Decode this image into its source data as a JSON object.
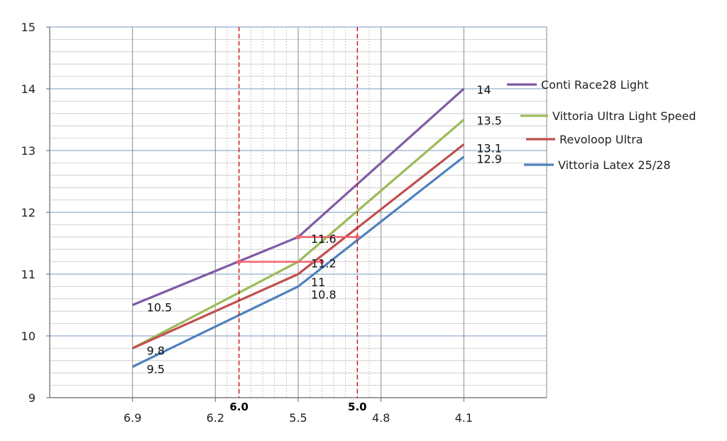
{
  "chart_data": {
    "type": "line",
    "title": "",
    "xlabel": "",
    "ylabel": "",
    "x_tick_labels": [
      "6.9",
      "6.2",
      "5.5",
      "4.8",
      "4.1"
    ],
    "x_tick_values": [
      6.9,
      6.2,
      5.5,
      4.8,
      4.1
    ],
    "x_points": [
      6.9,
      5.5,
      4.1
    ],
    "xlim": [
      7.6,
      3.4
    ],
    "ylim": [
      9,
      15
    ],
    "y_ticks": [
      9,
      10,
      11,
      12,
      13,
      14,
      15
    ],
    "grid": true,
    "legend_position": "right",
    "series": [
      {
        "name": "Conti Race28 Light",
        "color": "#7f5aa5",
        "values": [
          10.5,
          11.6,
          14
        ],
        "labels": [
          "10.5",
          "11.6",
          "14"
        ]
      },
      {
        "name": "Vittoria Ultra Light Speed",
        "color": "#9bbb59",
        "values": [
          9.8,
          11.2,
          13.5
        ],
        "labels": [
          "9.8",
          "11.2",
          "13.5"
        ]
      },
      {
        "name": "Revoloop Ultra",
        "color": "#c0504d",
        "values": [
          9.8,
          11,
          13.1
        ],
        "labels": [
          "",
          "11",
          "13.1"
        ]
      },
      {
        "name": "Vittoria Latex 25/28",
        "color": "#4f81bd",
        "values": [
          9.5,
          10.8,
          12.9
        ],
        "labels": [
          "9.5",
          "10.8",
          "12.9"
        ]
      }
    ],
    "reference_lines": [
      {
        "x": 6.0,
        "label": "6.0",
        "color": "#cc0000"
      },
      {
        "x": 5.0,
        "label": "5.0",
        "color": "#cc0000"
      }
    ],
    "annotations": [
      {
        "from": [
          6.0,
          11.2
        ],
        "to": [
          5.3,
          11.2
        ],
        "color": "#f06070"
      },
      {
        "from": [
          5.5,
          11.6
        ],
        "to": [
          5.0,
          11.6
        ],
        "color": "#f06070"
      }
    ]
  }
}
